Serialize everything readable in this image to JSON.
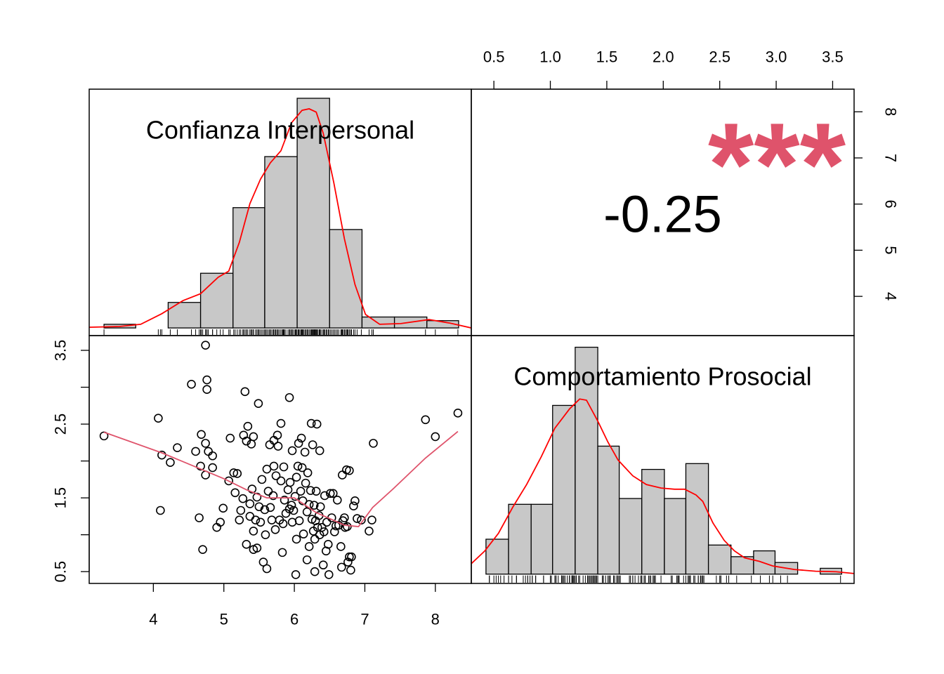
{
  "chart_data": [
    {
      "type": "histogram",
      "title": "Confianza Interpersonal",
      "color": "#c8c8c8",
      "density_color": "#ff0000",
      "bins": [
        3.3,
        3.75,
        4.21,
        4.67,
        5.13,
        5.58,
        6.04,
        6.5,
        6.96,
        7.42,
        7.88,
        8.33
      ],
      "values": [
        1,
        0,
        7,
        15,
        33,
        47,
        63,
        27,
        3,
        3,
        2
      ],
      "xlim": [
        3.09,
        8.51
      ],
      "ylim": [
        -2.1,
        65.5
      ],
      "density": {
        "x": [
          3.09,
          3.52,
          3.82,
          4.12,
          4.42,
          4.67,
          4.92,
          5.07,
          5.22,
          5.37,
          5.52,
          5.66,
          5.81,
          5.96,
          6.11,
          6.21,
          6.31,
          6.41,
          6.56,
          6.71,
          6.86,
          7.01,
          7.21,
          7.51,
          7.91,
          8.21,
          8.51
        ],
        "y": [
          0.2,
          0.4,
          1.0,
          3.9,
          7.5,
          9.4,
          13.9,
          15.6,
          23.5,
          34.1,
          40.8,
          45.3,
          48.6,
          56.3,
          59.7,
          60.1,
          59.2,
          53.4,
          39.8,
          24.5,
          11.9,
          3.7,
          1.0,
          1.2,
          2.3,
          1.3,
          0
        ]
      }
    },
    {
      "type": "correlation",
      "value": -0.25,
      "stars": "***",
      "stars_color": "#DF536B",
      "xlim": [
        0.3,
        3.69
      ],
      "xticks": [
        0.5,
        {
          "value": 1,
          "label": "1.0"
        },
        1.5,
        {
          "value": 2,
          "label": "2.0"
        },
        2.5,
        {
          "value": 3,
          "label": "3.0"
        },
        3.5
      ],
      "ylim": [
        3.15,
        8.49
      ],
      "yticks": [
        4,
        5,
        6,
        7,
        8
      ]
    },
    {
      "type": "scatter",
      "point_color": "#000000",
      "x": [
        3.3,
        4.07,
        4.1,
        4.12,
        4.24,
        4.34,
        4.54,
        4.6,
        4.65,
        4.67,
        4.68,
        4.7,
        4.74,
        4.76,
        4.76,
        4.74,
        4.74,
        4.78,
        4.84,
        4.84,
        4.9,
        4.95,
        4.99,
        5.07,
        5.09,
        5.14,
        5.16,
        5.19,
        5.22,
        5.24,
        5.27,
        5.28,
        5.3,
        5.32,
        5.32,
        5.34,
        5.37,
        5.37,
        5.39,
        5.4,
        5.42,
        5.42,
        5.42,
        5.45,
        5.47,
        5.47,
        5.49,
        5.5,
        5.52,
        5.54,
        5.56,
        5.58,
        5.59,
        5.61,
        5.61,
        5.63,
        5.65,
        5.66,
        5.68,
        5.7,
        5.71,
        5.71,
        5.73,
        5.74,
        5.76,
        5.77,
        5.79,
        5.81,
        5.81,
        5.83,
        5.84,
        5.85,
        5.86,
        5.88,
        5.91,
        5.93,
        5.93,
        5.94,
        5.96,
        5.97,
        5.97,
        5.99,
        6.01,
        6.02,
        6.03,
        6.03,
        6.05,
        6.06,
        6.07,
        6.09,
        6.1,
        6.11,
        6.12,
        6.13,
        6.15,
        6.16,
        6.18,
        6.18,
        6.19,
        6.21,
        6.21,
        6.23,
        6.24,
        6.25,
        6.26,
        6.27,
        6.28,
        6.29,
        6.29,
        6.3,
        6.31,
        6.32,
        6.33,
        6.35,
        6.36,
        6.36,
        6.37,
        6.39,
        6.41,
        6.42,
        6.43,
        6.45,
        6.46,
        6.48,
        6.49,
        6.51,
        6.53,
        6.55,
        6.57,
        6.59,
        6.61,
        6.63,
        6.66,
        6.67,
        6.68,
        6.69,
        6.71,
        6.72,
        6.74,
        6.75,
        6.76,
        6.78,
        6.78,
        6.8,
        6.81,
        6.84,
        6.86,
        6.89,
        6.95,
        7.06,
        7.1,
        7.12,
        7.86,
        8.0,
        8.32
      ],
      "values": [
        2.34,
        2.58,
        1.33,
        2.08,
        1.98,
        2.18,
        3.04,
        2.13,
        1.23,
        1.93,
        2.36,
        0.8,
        3.57,
        3.1,
        2.97,
        2.24,
        1.81,
        2.13,
        2.07,
        1.91,
        1.1,
        1.17,
        1.36,
        1.73,
        2.31,
        1.84,
        1.57,
        1.83,
        1.2,
        1.33,
        1.49,
        2.35,
        2.94,
        0.87,
        2.27,
        2.47,
        1.25,
        1.42,
        2.23,
        1.62,
        2.33,
        0.8,
        1.05,
        1.2,
        0.82,
        1.51,
        2.78,
        1.38,
        1.17,
        1.75,
        0.63,
        1.34,
        1.0,
        0.54,
        1.89,
        1.59,
        2.22,
        1.37,
        1.2,
        1.53,
        1.93,
        2.28,
        1.07,
        1.8,
        2.35,
        2.2,
        1.2,
        1.73,
        2.51,
        0.76,
        1.15,
        1.92,
        1.47,
        1.29,
        1.61,
        2.86,
        1.35,
        1.71,
        1.4,
        1.17,
        2.14,
        1.33,
        1.52,
        0.46,
        0.94,
        1.78,
        1.93,
        2.24,
        1.19,
        1.59,
        2.31,
        1.91,
        1.46,
        1.01,
        2.12,
        1.7,
        0.66,
        1.31,
        1.84,
        0.84,
        1.41,
        1.6,
        2.51,
        1.21,
        2.22,
        1.05,
        1.4,
        0.5,
        0.94,
        1.19,
        1.59,
        2.5,
        1.1,
        1.26,
        2.14,
        1.0,
        1.38,
        1.1,
        0.59,
        1.04,
        1.53,
        0.78,
        1.17,
        0.87,
        0.46,
        1.56,
        1.23,
        1.56,
        1.04,
        1.12,
        1.47,
        1.13,
        0.84,
        0.56,
        1.81,
        1.19,
        1.23,
        1.1,
        1.88,
        1.11,
        0.63,
        0.7,
        1.87,
        0.52,
        0.7,
        1.39,
        1.46,
        1.22,
        1.2,
        1.05,
        1.2,
        2.24,
        2.56,
        2.33,
        2.65
      ],
      "xlim": [
        3.09,
        8.51
      ],
      "xticks": [
        4,
        5,
        6,
        7,
        8
      ],
      "ylim": [
        0.34,
        3.7
      ],
      "yticks": [
        0.5,
        1.5,
        2.5,
        3.5
      ],
      "yminorticks": [
        1,
        2,
        3
      ],
      "smooth": {
        "color": "#DF536B",
        "x": [
          3.3,
          4.12,
          5.0,
          5.32,
          5.61,
          6.0,
          6.31,
          6.71,
          6.91,
          7.11,
          7.41,
          7.86,
          8.32
        ],
        "y": [
          2.39,
          2.11,
          1.76,
          1.61,
          1.5,
          1.5,
          1.3,
          1.13,
          1.11,
          1.37,
          1.63,
          2.04,
          2.4
        ]
      }
    },
    {
      "type": "histogram",
      "title": "Comportamiento Prosocial",
      "color": "#c8c8c8",
      "density_color": "#ff0000",
      "bins": [
        0.43,
        0.63,
        0.83,
        1.02,
        1.22,
        1.42,
        1.61,
        1.81,
        2.01,
        2.2,
        2.4,
        2.6,
        2.8,
        2.99,
        3.19,
        3.39,
        3.58
      ],
      "values": [
        6,
        12,
        12,
        29,
        39,
        22,
        13,
        18,
        13,
        19,
        5,
        3,
        4,
        2,
        0,
        1
      ],
      "xlim": [
        0.3,
        3.69
      ],
      "ylim": [
        -1.6,
        41
      ],
      "density": {
        "x": [
          0.3,
          0.42,
          0.54,
          0.67,
          0.79,
          0.92,
          1.04,
          1.17,
          1.26,
          1.32,
          1.42,
          1.51,
          1.6,
          1.73,
          1.85,
          1.98,
          2.1,
          2.19,
          2.29,
          2.35,
          2.44,
          2.54,
          2.63,
          2.72,
          2.85,
          2.97,
          3.16,
          3.35,
          3.53,
          3.69
        ],
        "y": [
          1.8,
          4.0,
          7.0,
          11.6,
          15.4,
          20.2,
          25.1,
          28.4,
          30.1,
          29.9,
          26.3,
          22.7,
          19.6,
          16.9,
          15.4,
          14.8,
          14.6,
          14.6,
          13.6,
          12.5,
          8.8,
          5.8,
          4.0,
          2.8,
          2.2,
          1.4,
          0.8,
          0.5,
          0.4,
          0.1
        ]
      }
    }
  ]
}
